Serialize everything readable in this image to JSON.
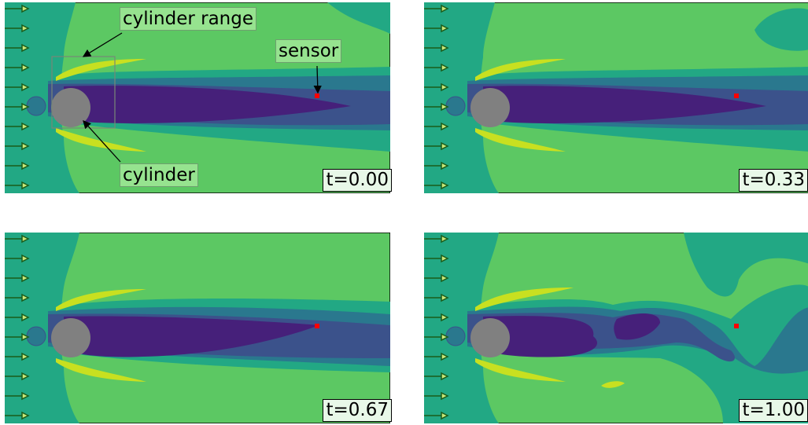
{
  "annotations": {
    "cylinder_range": "cylinder range",
    "sensor": "sensor",
    "cylinder": "cylinder"
  },
  "panels": [
    {
      "time_label": "t=0.00"
    },
    {
      "time_label": "t=0.33"
    },
    {
      "time_label": "t=0.67"
    },
    {
      "time_label": "t=1.00"
    }
  ],
  "colors": {
    "background": "#5cc863",
    "outer_band": "#22a884",
    "mid_band": "#2a788e",
    "inner_band": "#3b528b",
    "wake_core": "#46207a",
    "shear_layer": "#c8e020",
    "cylinder": "#808080",
    "sensor": "#ff0000",
    "inflow_arrow": "#1a5c1a"
  }
}
